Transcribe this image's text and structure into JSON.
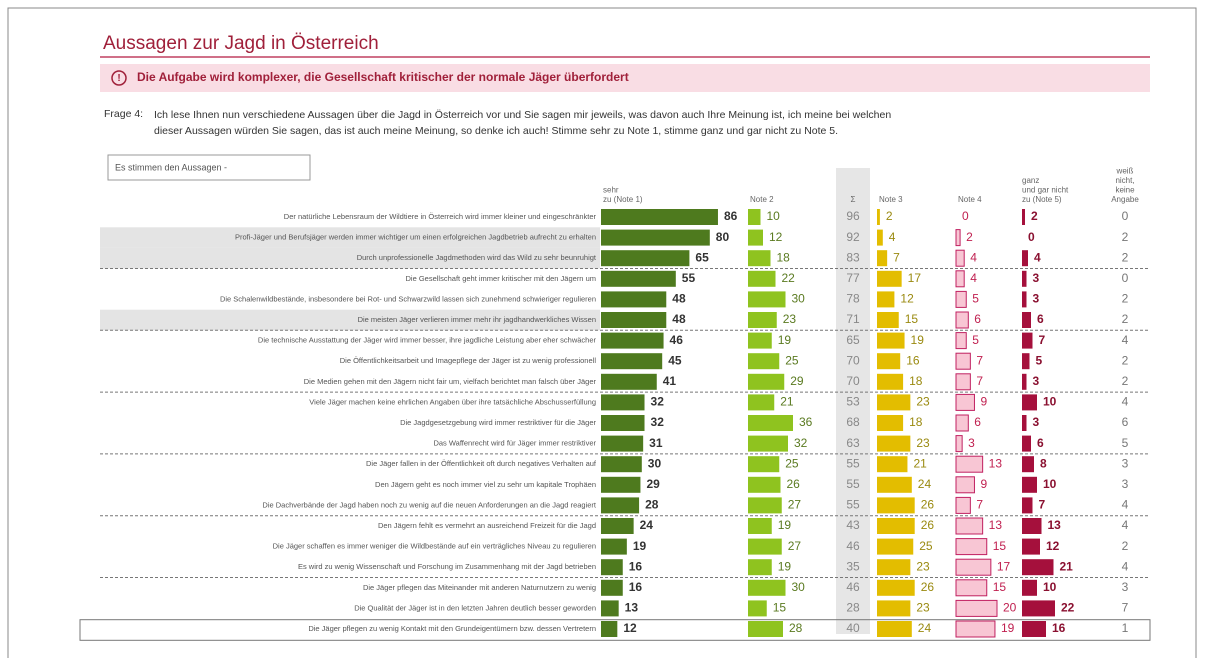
{
  "header": {
    "title": "Aussagen zur Jagd in Österreich",
    "banner": "Die Aufgabe wird komplexer, die Gesellschaft kritischer der normale Jäger überfordert"
  },
  "question": {
    "label": "Frage 4:",
    "line1": "Ich lese Ihnen nun verschiedene Aussagen über die Jagd in Österreich vor und Sie sagen mir jeweils, was davon auch Ihre Meinung ist, ich meine bei welchen",
    "line2": "dieser Aussagen würden Sie sagen, das ist auch meine Meinung, so denke ich auch! Stimme sehr zu Note 1, stimme ganz und gar nicht zu Note 5."
  },
  "filter": "Es stimmen den Aussagen -",
  "columns": [
    [
      "sehr",
      "zu (Note 1)"
    ],
    [
      "Note 2"
    ],
    [
      "Σ"
    ],
    [
      "Note 3"
    ],
    [
      "Note 4"
    ],
    [
      "ganz",
      "und gar nicht",
      "zu (Note 5)"
    ],
    [
      "weiß",
      "nicht,",
      "keine",
      "Angabe"
    ]
  ],
  "rows": [
    {
      "label": "Der natürliche Lebensraum der Wildtiere in Österreich wird immer kleiner und eingeschränkter",
      "values": [
        86,
        10,
        96,
        2,
        0,
        2,
        0
      ]
    },
    {
      "label": "Profi-Jäger und Berufsjäger werden immer wichtiger um einen erfolgreichen Jagdbetrieb aufrecht zu erhalten",
      "values": [
        80,
        12,
        92,
        4,
        2,
        0,
        2
      ]
    },
    {
      "label": "Durch unprofessionelle Jagdmethoden wird das Wild zu sehr beunruhigt",
      "values": [
        65,
        18,
        83,
        7,
        4,
        4,
        2
      ]
    },
    {
      "label": "Die Gesellschaft geht immer kritischer mit den Jägern um",
      "values": [
        55,
        22,
        77,
        17,
        4,
        3,
        0
      ]
    },
    {
      "label": "Die Schalenwildbestände, insbesondere bei Rot- und Schwarzwild lassen sich zunehmend schwieriger regulieren",
      "values": [
        48,
        30,
        78,
        12,
        5,
        3,
        2
      ]
    },
    {
      "label": "Die meisten Jäger verlieren immer mehr ihr jagdhandwerkliches Wissen",
      "values": [
        48,
        23,
        71,
        15,
        6,
        6,
        2
      ]
    },
    {
      "label": "Die technische Ausstattung der Jäger wird immer besser, ihre jagdliche Leistung aber eher schwächer",
      "values": [
        46,
        19,
        65,
        19,
        5,
        7,
        4
      ]
    },
    {
      "label": "Die Öffentlichkeitsarbeit und Imagepflege der Jäger ist zu wenig professionell",
      "values": [
        45,
        25,
        70,
        16,
        7,
        5,
        2
      ]
    },
    {
      "label": "Die Medien gehen mit den Jägern nicht fair um, vielfach berichtet man falsch über Jäger",
      "values": [
        41,
        29,
        70,
        18,
        7,
        3,
        2
      ]
    },
    {
      "label": "Viele Jäger machen keine ehrlichen Angaben über ihre tatsächliche Abschusserfüllung",
      "values": [
        32,
        21,
        53,
        23,
        9,
        10,
        4
      ]
    },
    {
      "label": "Die Jagdgesetzgebung wird immer restriktiver für die Jäger",
      "values": [
        32,
        36,
        68,
        18,
        6,
        3,
        6
      ]
    },
    {
      "label": "Das Waffenrecht wird für Jäger immer restriktiver",
      "values": [
        31,
        32,
        63,
        23,
        3,
        6,
        5
      ]
    },
    {
      "label": "Die Jäger fallen in der Öffentlichkeit oft durch negatives Verhalten auf",
      "values": [
        30,
        25,
        55,
        21,
        13,
        8,
        3
      ]
    },
    {
      "label": "Den Jägern geht es noch immer viel zu sehr um kapitale Trophäen",
      "values": [
        29,
        26,
        55,
        24,
        9,
        10,
        3
      ]
    },
    {
      "label": "Die Dachverbände der Jagd haben noch zu wenig auf die neuen Anforderungen an die Jagd reagiert",
      "values": [
        28,
        27,
        55,
        26,
        7,
        7,
        4
      ]
    },
    {
      "label": "Den Jägern fehlt es vermehrt an ausreichend Freizeit für die Jagd",
      "values": [
        24,
        19,
        43,
        26,
        13,
        13,
        4
      ]
    },
    {
      "label": "Die Jäger schaffen es immer weniger die Wildbestände auf ein verträgliches Niveau zu regulieren",
      "values": [
        19,
        27,
        46,
        25,
        15,
        12,
        2
      ]
    },
    {
      "label": "Es wird zu wenig Wissenschaft und Forschung im Zusammenhang mit der Jagd betrieben",
      "values": [
        16,
        19,
        35,
        23,
        17,
        21,
        4
      ]
    },
    {
      "label": "Die Jäger pflegen das Miteinander mit anderen Naturnutzern zu wenig",
      "values": [
        16,
        30,
        46,
        26,
        15,
        10,
        3
      ]
    },
    {
      "label": "Die Qualität der Jäger ist in den letzten Jahren deutlich besser geworden",
      "values": [
        13,
        15,
        28,
        23,
        20,
        22,
        7
      ]
    },
    {
      "label": "Die Jäger pflegen zu wenig Kontakt mit den Grundeigentümern bzw. dessen Vertretern",
      "values": [
        12,
        28,
        40,
        24,
        19,
        16,
        1
      ]
    }
  ]
}
